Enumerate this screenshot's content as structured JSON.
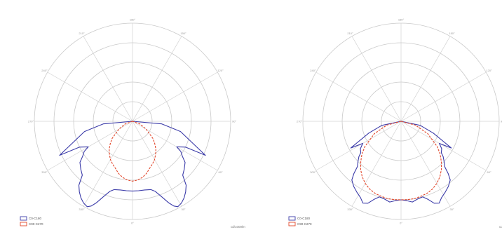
{
  "chart_data": [
    {
      "type": "polar",
      "rings": 5,
      "angle_labels": [
        "180°",
        "150°",
        "120°",
        "90°",
        "60°",
        "30°",
        "0°",
        "330°",
        "300°",
        "270°",
        "240°",
        "210°"
      ],
      "legend": [
        {
          "label": "C0-C180",
          "color": "#3a3aa8",
          "style": "solid"
        },
        {
          "label": "C90-C270",
          "color": "#e2462a",
          "style": "dashed"
        }
      ],
      "unit_label": "cd/1000lm",
      "series": [
        {
          "name": "C0-C180",
          "style": "solid",
          "color": "#3a3aa8",
          "angles": [
            -100,
            -85,
            -78,
            -65,
            -64,
            -60,
            -58,
            -55,
            -52,
            -47,
            -43,
            -40,
            -37,
            -34,
            -31,
            -28,
            -26,
            -24,
            -21,
            -18,
            -15,
            -10,
            -5,
            0,
            5,
            10,
            15,
            18,
            21,
            24,
            26,
            28,
            31,
            34,
            37,
            40,
            43,
            47,
            52,
            55,
            58,
            60,
            64,
            65,
            78,
            85,
            100
          ],
          "r": [
            0,
            0.3,
            0.5,
            0.82,
            0.6,
            0.52,
            0.58,
            0.62,
            0.68,
            0.72,
            0.75,
            0.85,
            0.9,
            0.94,
            0.97,
            0.985,
            0.96,
            0.91,
            0.82,
            0.75,
            0.72,
            0.71,
            0.71,
            0.71,
            0.71,
            0.71,
            0.72,
            0.75,
            0.82,
            0.91,
            0.96,
            0.985,
            0.97,
            0.94,
            0.9,
            0.85,
            0.75,
            0.72,
            0.68,
            0.62,
            0.58,
            0.52,
            0.6,
            0.82,
            0.5,
            0.3,
            0
          ]
        },
        {
          "name": "C90-C270",
          "style": "dashed",
          "color": "#e2462a",
          "angles": [
            -90,
            -70,
            -60,
            -50,
            -45,
            -40,
            -35,
            -30,
            -25,
            -20,
            -15,
            -10,
            -5,
            0,
            5,
            10,
            15,
            20,
            25,
            30,
            35,
            40,
            45,
            50,
            60,
            70,
            90
          ],
          "r": [
            0,
            0.08,
            0.16,
            0.27,
            0.32,
            0.37,
            0.41,
            0.45,
            0.48,
            0.51,
            0.55,
            0.58,
            0.6,
            0.61,
            0.6,
            0.58,
            0.55,
            0.51,
            0.48,
            0.45,
            0.41,
            0.37,
            0.32,
            0.27,
            0.16,
            0.08,
            0
          ]
        }
      ]
    },
    {
      "type": "polar",
      "rings": 5,
      "angle_labels": [
        "180°",
        "150°",
        "120°",
        "90°",
        "60°",
        "30°",
        "0°",
        "330°",
        "300°",
        "270°",
        "240°",
        "210°"
      ],
      "legend": [
        {
          "label": "C0-C180",
          "color": "#3a3aa8",
          "style": "solid"
        },
        {
          "label": "C90-C270",
          "color": "#e2462a",
          "style": "dashed"
        }
      ],
      "unit_label": "cd/1000lm",
      "series": [
        {
          "name": "C0-C180",
          "style": "solid",
          "color": "#3a3aa8",
          "angles": [
            -90,
            -78,
            -70,
            -62,
            -60,
            -56,
            -52,
            -50,
            -47,
            -44,
            -42,
            -40,
            -36,
            -32,
            -28,
            -25,
            -22,
            -19,
            -16,
            -12,
            -8,
            -4,
            0,
            4,
            8,
            12,
            16,
            19,
            22,
            25,
            28,
            32,
            36,
            40,
            42,
            44,
            47,
            50,
            52,
            56,
            60,
            62,
            70,
            78,
            90
          ],
          "r": [
            0,
            0.2,
            0.35,
            0.58,
            0.45,
            0.5,
            0.52,
            0.56,
            0.6,
            0.64,
            0.72,
            0.78,
            0.82,
            0.85,
            0.88,
            0.92,
            0.9,
            0.84,
            0.8,
            0.81,
            0.83,
            0.81,
            0.8,
            0.81,
            0.83,
            0.81,
            0.8,
            0.84,
            0.9,
            0.92,
            0.88,
            0.85,
            0.82,
            0.78,
            0.72,
            0.64,
            0.6,
            0.56,
            0.52,
            0.5,
            0.45,
            0.58,
            0.35,
            0.2,
            0
          ]
        },
        {
          "name": "C90-C270",
          "style": "dashed",
          "color": "#e2462a",
          "angles": [
            -90,
            -75,
            -65,
            -55,
            -50,
            -45,
            -40,
            -35,
            -30,
            -25,
            -20,
            -15,
            -10,
            -5,
            0,
            5,
            10,
            15,
            20,
            25,
            30,
            35,
            40,
            45,
            50,
            55,
            65,
            75,
            90
          ],
          "r": [
            0,
            0.15,
            0.3,
            0.45,
            0.52,
            0.58,
            0.64,
            0.69,
            0.73,
            0.76,
            0.78,
            0.79,
            0.8,
            0.8,
            0.8,
            0.8,
            0.8,
            0.79,
            0.78,
            0.76,
            0.73,
            0.69,
            0.64,
            0.58,
            0.52,
            0.45,
            0.3,
            0.15,
            0
          ]
        }
      ]
    }
  ]
}
